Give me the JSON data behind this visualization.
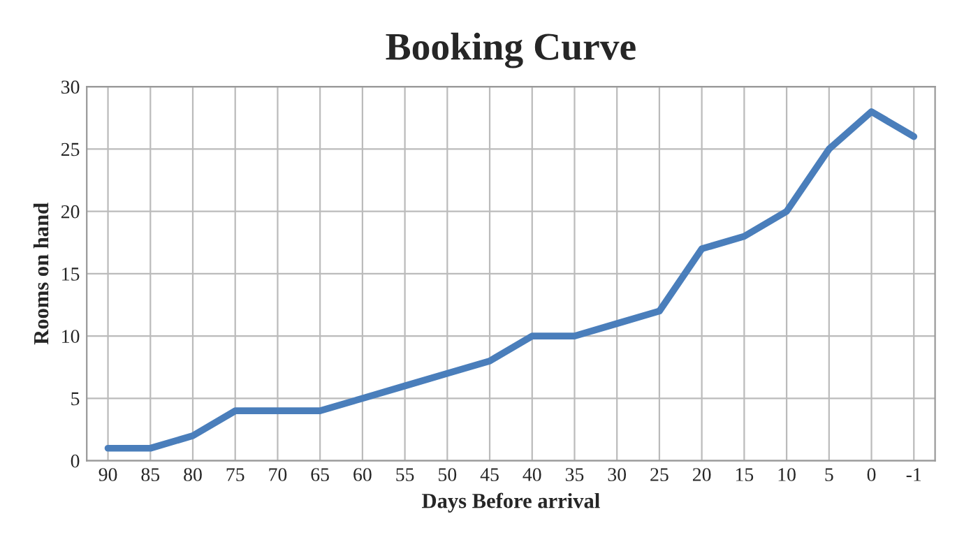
{
  "chart_data": {
    "type": "line",
    "title": "Booking Curve",
    "xlabel": "Days Before arrival",
    "ylabel": "Rooms on hand",
    "categories": [
      "90",
      "85",
      "80",
      "75",
      "70",
      "65",
      "60",
      "55",
      "50",
      "45",
      "40",
      "35",
      "30",
      "25",
      "20",
      "15",
      "10",
      "5",
      "0",
      "-1"
    ],
    "series": [
      {
        "color": "#4a7ebb",
        "values": [
          1,
          1,
          2,
          4,
          4,
          4,
          5,
          6,
          7,
          8,
          10,
          10,
          11,
          12,
          17,
          18,
          20,
          25,
          28,
          26
        ]
      }
    ],
    "ylim": [
      0,
      30
    ],
    "yticks": [
      0,
      5,
      10,
      15,
      20,
      25,
      30
    ],
    "grid": true,
    "legend": false,
    "marker": "none",
    "line_style": "solid"
  }
}
